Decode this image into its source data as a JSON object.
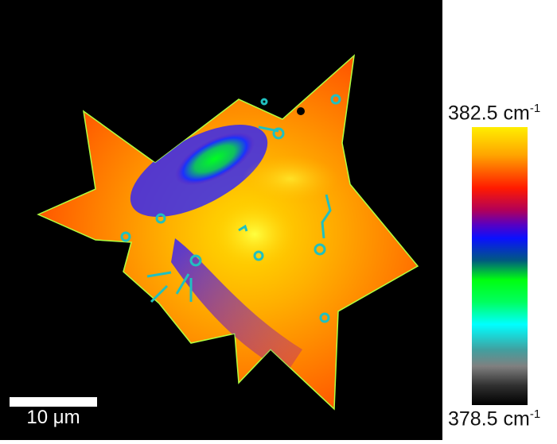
{
  "image": {
    "type": "raman-shift-map",
    "background": "#000000"
  },
  "scale_bar": {
    "label": "10 μm"
  },
  "colorbar": {
    "max_value": "382.5",
    "min_value": "378.5",
    "unit": "cm",
    "unit_exponent": "-1",
    "colormap": [
      "#ffee00",
      "#ffa500",
      "#ff1a00",
      "#5a00c0",
      "#0a10ff",
      "#00ff10",
      "#00ffff",
      "#808080",
      "#000000"
    ]
  }
}
